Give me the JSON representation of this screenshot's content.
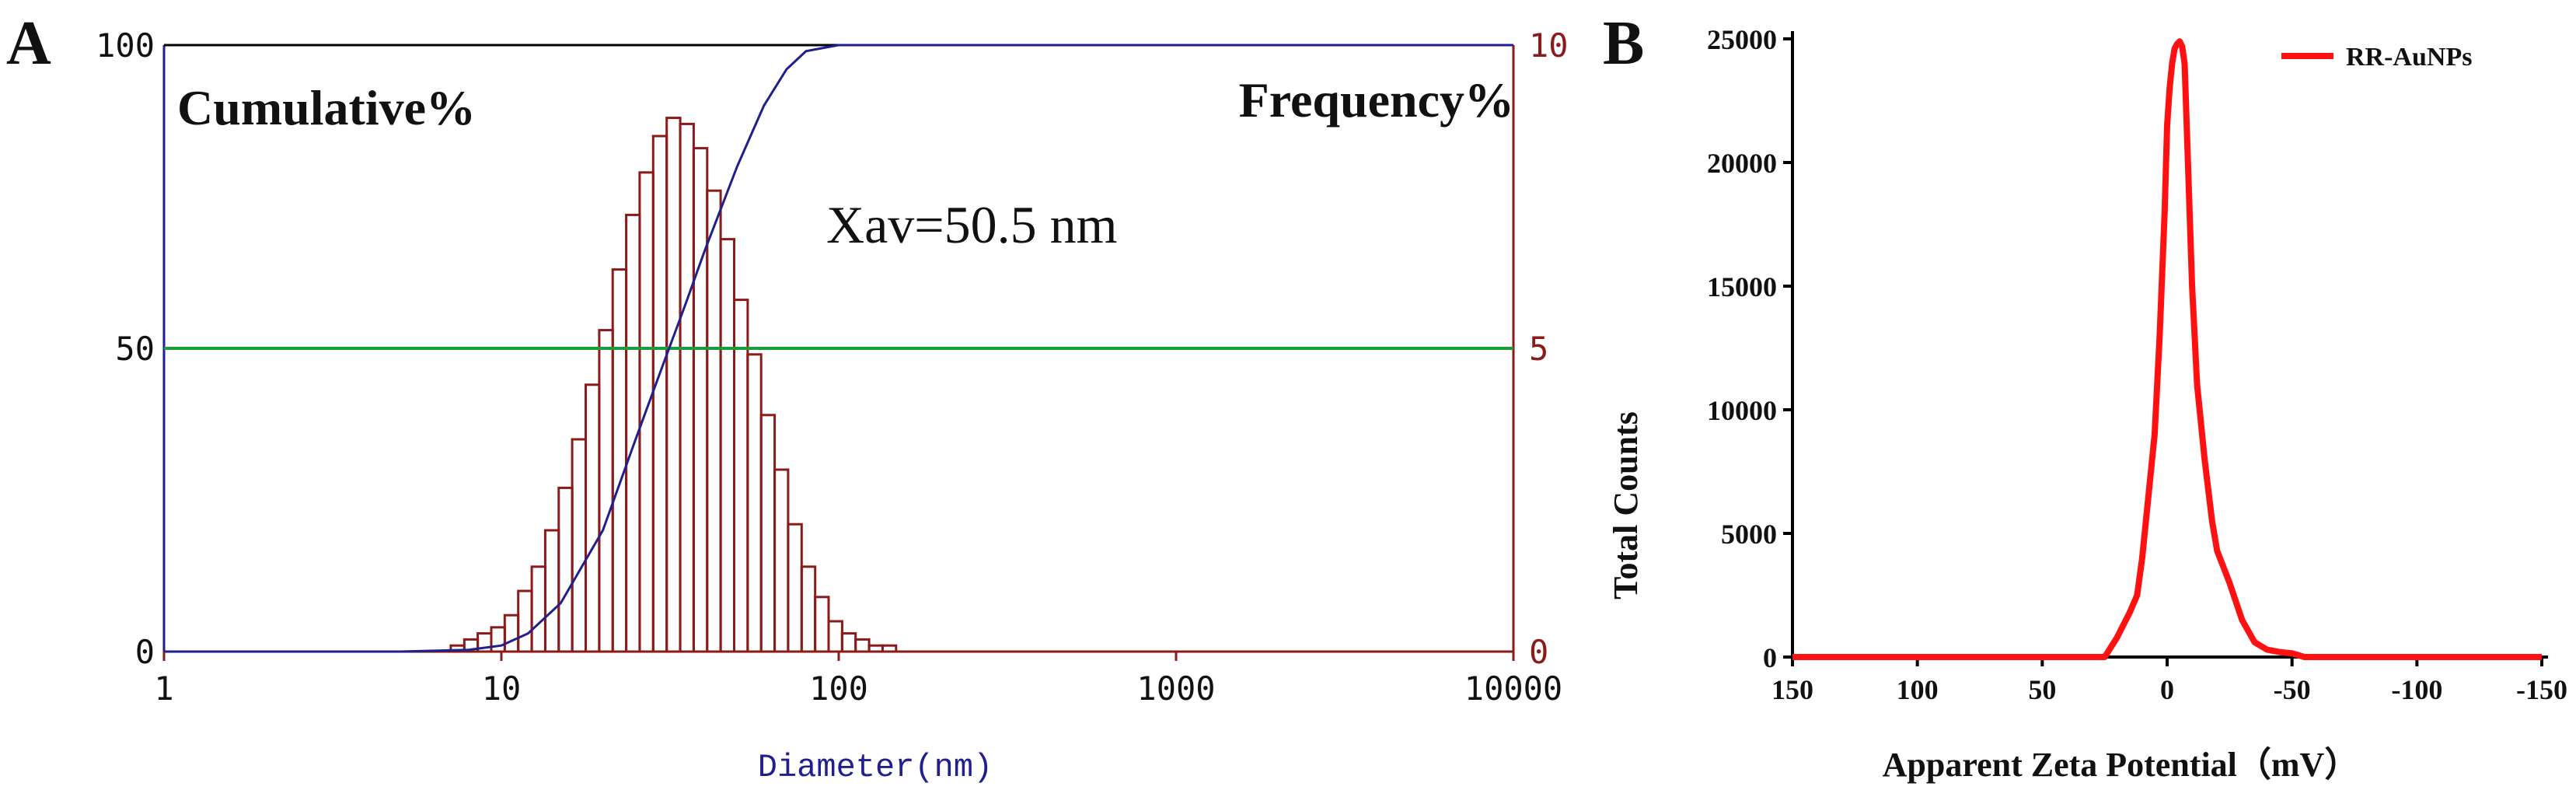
{
  "colors": {
    "panel_a_frame": "#8b1a1a",
    "panel_a_top_axis": "#000000",
    "cumulative_curve": "#1f1f8f",
    "frequency_bars": "#8b1a1a",
    "median_line": "#1a9c3a",
    "left_axis_text": "#111111",
    "right_axis_text": "#8b1a1a",
    "x_label_color": "#1f1f8f",
    "zeta_curve": "#ff1111",
    "panel_b_axes": "#000000"
  },
  "chart_data": [
    {
      "panel_label": "A",
      "type": "bar",
      "title": "",
      "xscale": "log",
      "xlim": [
        1,
        10000
      ],
      "xlabel": "Diameter(nm)",
      "x_ticks": [
        1,
        10,
        100,
        1000,
        10000
      ],
      "x_tick_labels": [
        "1",
        "10",
        "100",
        "1000",
        "10000"
      ],
      "y_left": {
        "label": "Cumulative%",
        "lim": [
          0,
          100
        ],
        "ticks": [
          "0",
          "50",
          "100"
        ]
      },
      "y_right": {
        "label": "Frequency%",
        "lim": [
          0,
          10
        ],
        "ticks": [
          "0",
          "5",
          "10"
        ]
      },
      "annotation": "Xav=50.5 nm",
      "median_line_value": 50,
      "frequency_bins": {
        "bin_left_log10": [
          0.85,
          0.89,
          0.93,
          0.97,
          1.01,
          1.05,
          1.09,
          1.13,
          1.17,
          1.21,
          1.25,
          1.29,
          1.33,
          1.37,
          1.41,
          1.45,
          1.49,
          1.53,
          1.57,
          1.61,
          1.65,
          1.69,
          1.73,
          1.77,
          1.81,
          1.85,
          1.89,
          1.93,
          1.97,
          2.01,
          2.05,
          2.09,
          2.13
        ],
        "bin_width_log10": 0.04,
        "values": [
          0.1,
          0.2,
          0.3,
          0.4,
          0.6,
          1.0,
          1.4,
          2.0,
          2.7,
          3.5,
          4.4,
          5.3,
          6.3,
          7.2,
          7.9,
          8.5,
          8.8,
          8.7,
          8.3,
          7.6,
          6.8,
          5.8,
          4.9,
          3.9,
          3.0,
          2.1,
          1.4,
          0.9,
          0.5,
          0.3,
          0.2,
          0.1,
          0.1
        ]
      },
      "series": [
        {
          "name": "Cumulative%",
          "x": [
            1,
            5,
            8,
            10,
            12,
            15,
            20,
            25,
            30,
            35,
            40,
            50,
            60,
            70,
            80,
            100,
            10000
          ],
          "values": [
            0,
            0,
            0.3,
            1,
            3,
            8,
            20,
            35,
            47,
            57,
            66,
            80,
            90,
            96,
            99,
            100,
            100
          ]
        }
      ]
    },
    {
      "panel_label": "B",
      "type": "line",
      "title": "",
      "xlabel": "Apparent Zeta Potential（mV）",
      "ylabel": "Total Counts",
      "xlim": [
        150,
        -150
      ],
      "ylim": [
        0,
        25000
      ],
      "x_ticks": [
        150,
        100,
        50,
        0,
        -50,
        -100,
        -150
      ],
      "x_tick_labels": [
        "150",
        "100",
        "50",
        "0",
        "-50",
        "-100",
        "-150"
      ],
      "y_ticks": [
        0,
        5000,
        10000,
        15000,
        20000,
        25000
      ],
      "y_tick_labels": [
        "0",
        "5000",
        "10000",
        "15000",
        "20000",
        "25000"
      ],
      "legend": {
        "position": "top-right",
        "entries": [
          "RR-AuNPs"
        ]
      },
      "series": [
        {
          "name": "RR-AuNPs",
          "x": [
            150,
            100,
            50,
            25,
            20,
            15,
            12,
            10,
            8,
            5,
            3,
            1,
            0,
            -1,
            -2,
            -3,
            -4,
            -5,
            -6,
            -7,
            -8,
            -10,
            -12,
            -15,
            -18,
            -20,
            -25,
            -30,
            -35,
            -40,
            -45,
            -50,
            -55,
            -100,
            -150
          ],
          "values": [
            0,
            0,
            0,
            0,
            800,
            1800,
            2500,
            4000,
            6000,
            9000,
            13000,
            18000,
            21500,
            23000,
            24000,
            24600,
            24800,
            24900,
            24700,
            24000,
            21000,
            15000,
            11000,
            8000,
            5500,
            4300,
            3000,
            1500,
            600,
            300,
            200,
            150,
            0,
            0,
            0
          ]
        }
      ]
    }
  ]
}
